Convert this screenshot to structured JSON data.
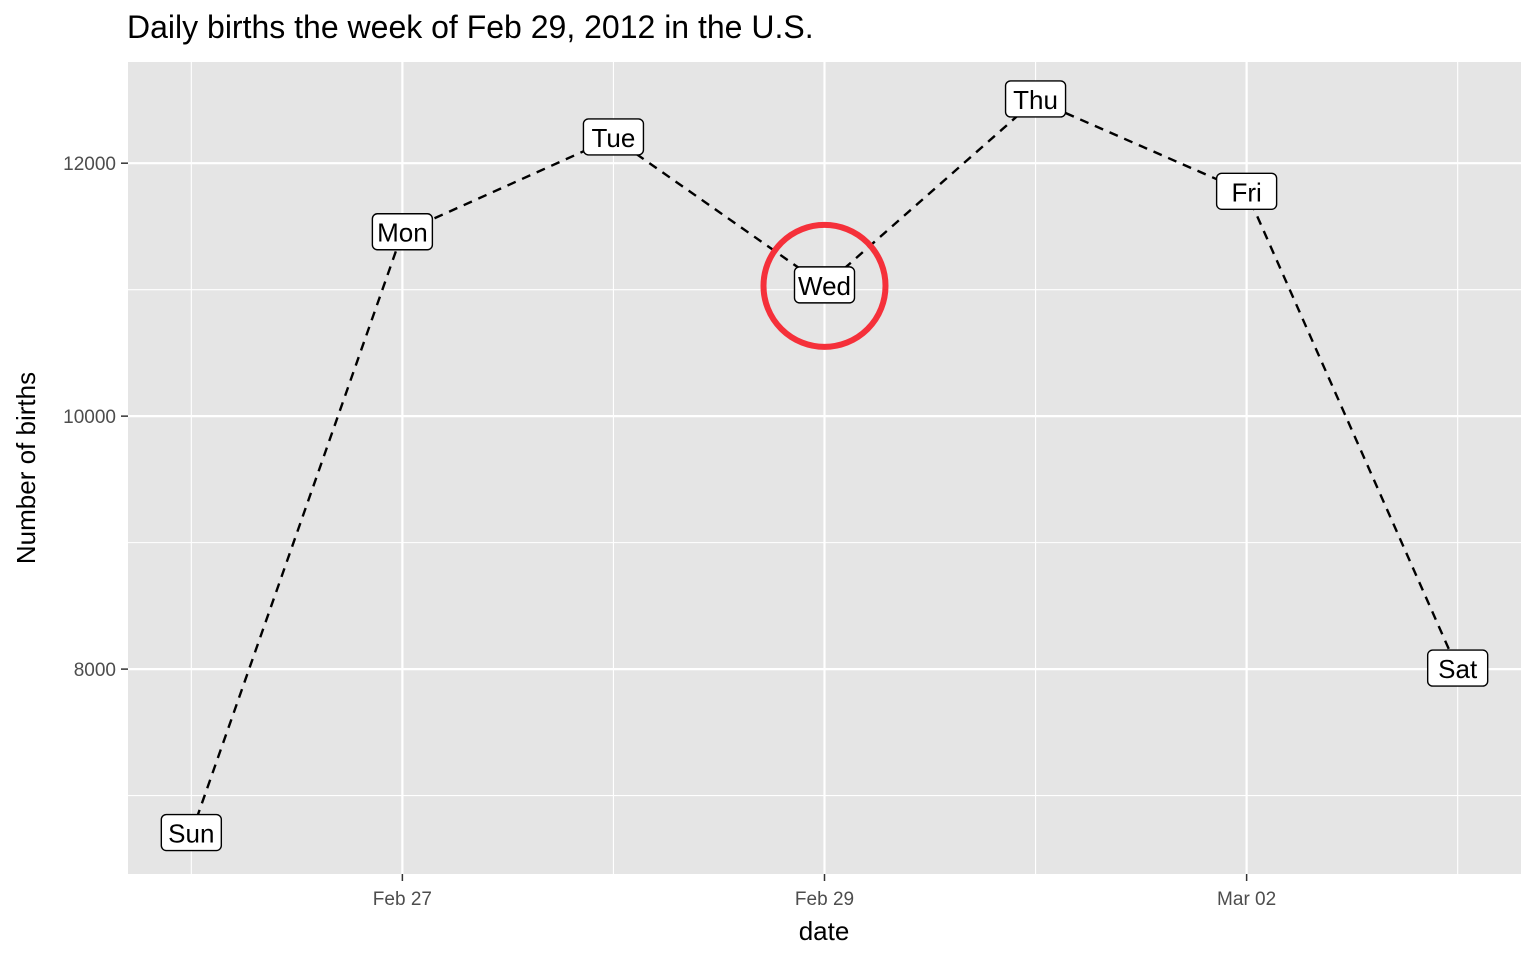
{
  "chart_data": {
    "type": "line",
    "title": "Daily births the week of Feb 29, 2012 in the U.S.",
    "xlabel": "date",
    "ylabel": "Number of births",
    "x": [
      "2012-02-26",
      "2012-02-27",
      "2012-02-28",
      "2012-02-29",
      "2012-03-01",
      "2012-03-02",
      "2012-03-03"
    ],
    "labels": [
      "Sun",
      "Mon",
      "Tue",
      "Wed",
      "Thu",
      "Fri",
      "Sat"
    ],
    "values": [
      6700,
      11450,
      12200,
      11030,
      12500,
      11770,
      8000
    ],
    "x_ticks": [
      {
        "date": "2012-02-27",
        "label": "Feb 27"
      },
      {
        "date": "2012-02-29",
        "label": "Feb 29"
      },
      {
        "date": "2012-03-02",
        "label": "Mar 02"
      }
    ],
    "y_ticks": [
      8000,
      10000,
      12000
    ],
    "xlim": [
      "2012-02-25",
      "2012-03-03"
    ],
    "ylim": [
      6380,
      12800
    ],
    "line_style": "dashed",
    "line_color": "#000000",
    "panel_background": "#e5e5e5",
    "grid": true,
    "highlight": {
      "label": "Wed",
      "color": "#f5303a",
      "shape": "circle"
    }
  }
}
